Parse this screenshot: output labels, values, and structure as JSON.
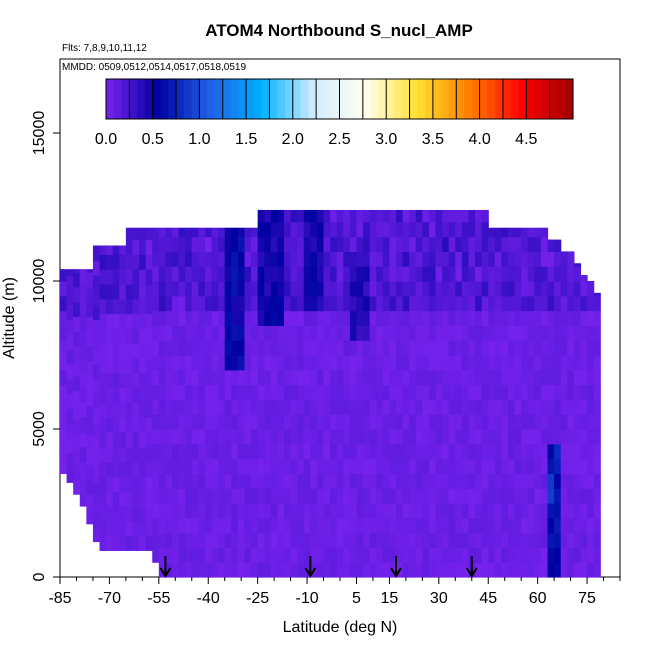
{
  "chart_data": {
    "type": "heatmap",
    "title": "ATOM4 Northbound S_nucl_AMP",
    "subtitle_flights": "Flts: 7,8,9,10,11,12",
    "subtitle_dates": "MMDD: 0509,0512,0514,0517,0518,0519",
    "xlabel": "Latitude (deg N)",
    "ylabel": "Altitude (m)",
    "xlim": [
      -85,
      85
    ],
    "ylim": [
      0,
      17500
    ],
    "x_ticks": [
      -85,
      -70,
      -55,
      -40,
      -25,
      -10,
      5,
      15,
      30,
      45,
      60,
      75
    ],
    "x_tick_labels": [
      "-85",
      "-70",
      "-55",
      "-40",
      "-25",
      "-10",
      "5",
      "15",
      "30",
      "45",
      "60",
      "75"
    ],
    "y_ticks": [
      0,
      5000,
      10000,
      15000
    ],
    "y_tick_labels": [
      "0",
      "5000",
      "10000",
      "15000"
    ],
    "colorbar": {
      "min": 0.0,
      "max": 5.0,
      "ticks": [
        0.0,
        0.5,
        1.0,
        1.5,
        2.0,
        2.5,
        3.0,
        3.5,
        4.0,
        4.5
      ],
      "tick_labels": [
        "0.0",
        "0.5",
        "1.0",
        "1.5",
        "2.0",
        "2.5",
        "3.0",
        "3.5",
        "4.0",
        "4.5"
      ],
      "colors": [
        "#7a23f0",
        "#0000a0",
        "#2060e8",
        "#00b0ff",
        "#d0ecff",
        "#fffff0",
        "#ffe030",
        "#ff8000",
        "#ff0000",
        "#a00000"
      ]
    },
    "coverage": {
      "lat_edges": [
        -85,
        -83,
        -81,
        -79,
        -77,
        -75,
        -73,
        -71,
        -69,
        -67,
        -65,
        -63,
        -61,
        -59,
        -57,
        -55,
        -53,
        -51,
        -49,
        -47,
        -45,
        -43,
        -41,
        -39,
        -37,
        -35,
        -33,
        -31,
        -29,
        -27,
        -25,
        -23,
        -21,
        -19,
        -17,
        -15,
        -13,
        -11,
        -9,
        -7,
        -5,
        -3,
        -1,
        1,
        3,
        5,
        7,
        9,
        11,
        13,
        15,
        17,
        19,
        21,
        23,
        25,
        27,
        29,
        31,
        33,
        35,
        37,
        39,
        41,
        43,
        45,
        47,
        49,
        51,
        53,
        55,
        57,
        59,
        61,
        63,
        65,
        67,
        69,
        71,
        73,
        75,
        77,
        79
      ],
      "top_altitudes": [
        10400,
        10400,
        10400,
        10400,
        10400,
        11200,
        11200,
        11200,
        11200,
        11200,
        11800,
        11800,
        11800,
        11800,
        11800,
        11800,
        11800,
        11800,
        11800,
        11800,
        11800,
        11800,
        11800,
        11800,
        11800,
        11800,
        11800,
        11800,
        11800,
        11800,
        12400,
        12400,
        12400,
        12400,
        12400,
        12400,
        12400,
        12400,
        12400,
        12400,
        12400,
        12400,
        12400,
        12400,
        12400,
        12400,
        12400,
        12400,
        12400,
        12400,
        12400,
        12400,
        12400,
        12400,
        12400,
        12400,
        12400,
        12400,
        12400,
        12400,
        12400,
        12400,
        12400,
        12400,
        12400,
        11800,
        11800,
        11800,
        11800,
        11800,
        11800,
        11800,
        11800,
        11800,
        11400,
        11400,
        11000,
        11000,
        10600,
        10200,
        10000,
        9600
      ],
      "bottom_altitudes": [
        3500,
        3200,
        2800,
        2400,
        1800,
        1200,
        900,
        900,
        900,
        900,
        900,
        900,
        900,
        900,
        500,
        0,
        0,
        0,
        0,
        0,
        0,
        0,
        0,
        0,
        0,
        0,
        0,
        0,
        0,
        0,
        0,
        0,
        0,
        0,
        0,
        0,
        0,
        0,
        0,
        0,
        0,
        0,
        0,
        0,
        0,
        0,
        0,
        0,
        0,
        0,
        0,
        0,
        0,
        0,
        0,
        0,
        0,
        0,
        0,
        0,
        0,
        0,
        0,
        0,
        0,
        0,
        0,
        0,
        0,
        0,
        0,
        0,
        0,
        0,
        0,
        0,
        0,
        0,
        0,
        0,
        0,
        0
      ]
    },
    "high_value_features": [
      {
        "lat": [
          -35,
          -30
        ],
        "alt": [
          7000,
          12300
        ],
        "value": 0.7
      },
      {
        "lat": [
          -25,
          -18
        ],
        "alt": [
          8500,
          12300
        ],
        "value": 0.6
      },
      {
        "lat": [
          -10,
          -5
        ],
        "alt": [
          9000,
          12000
        ],
        "value": 0.6
      },
      {
        "lat": [
          3,
          8
        ],
        "alt": [
          8000,
          10500
        ],
        "value": 0.5
      },
      {
        "lat": [
          63,
          67
        ],
        "alt": [
          0,
          4000
        ],
        "value": 0.9
      }
    ],
    "arrows_latitude": [
      -53,
      -9,
      17,
      40
    ]
  }
}
